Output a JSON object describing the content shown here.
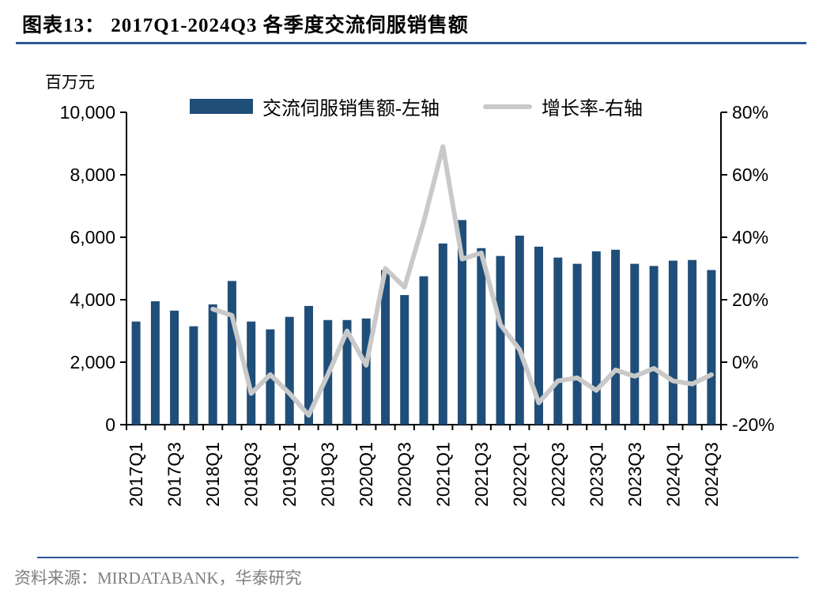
{
  "header": {
    "title": "图表13： 2017Q1-2024Q3 各季度交流伺服销售额"
  },
  "chart_data": {
    "type": "bar",
    "combo": "bar+line",
    "title": "2017Q1-2024Q3 各季度交流伺服销售额",
    "unit_label": "百万元",
    "grid": false,
    "legend_position": "top",
    "x_tick_every": 2,
    "categories": [
      "2017Q1",
      "2017Q2",
      "2017Q3",
      "2017Q4",
      "2018Q1",
      "2018Q2",
      "2018Q3",
      "2018Q4",
      "2019Q1",
      "2019Q2",
      "2019Q3",
      "2019Q4",
      "2020Q1",
      "2020Q2",
      "2020Q3",
      "2020Q4",
      "2021Q1",
      "2021Q2",
      "2021Q3",
      "2021Q4",
      "2022Q1",
      "2022Q2",
      "2022Q3",
      "2022Q4",
      "2023Q1",
      "2023Q2",
      "2023Q3",
      "2023Q4",
      "2024Q1",
      "2024Q2",
      "2024Q3"
    ],
    "left_axis": {
      "label": "百万元",
      "range": [
        0,
        10000
      ],
      "ticks": [
        0,
        2000,
        4000,
        6000,
        8000,
        10000
      ]
    },
    "right_axis": {
      "format": "percent",
      "range": [
        -20,
        80
      ],
      "ticks": [
        -20,
        0,
        20,
        40,
        60,
        80
      ]
    },
    "series": [
      {
        "name": "交流伺服销售额-左轴",
        "type": "bar",
        "axis": "left",
        "color": "#1F4E79",
        "values": [
          3300,
          3950,
          3650,
          3150,
          3850,
          4600,
          3300,
          3050,
          3450,
          3800,
          3350,
          3350,
          3400,
          4950,
          4150,
          4750,
          5800,
          6550,
          5650,
          5400,
          6050,
          5700,
          5350,
          5150,
          5550,
          5600,
          5150,
          5080,
          5250,
          5270,
          4950
        ]
      },
      {
        "name": "增长率-右轴",
        "type": "line",
        "axis": "right",
        "color": "#C9C9C9",
        "values": [
          null,
          null,
          null,
          null,
          17,
          15,
          -10,
          -4,
          -10,
          -17,
          -4,
          10,
          -1,
          30,
          24,
          45,
          69,
          33,
          35,
          12,
          4,
          -13,
          -6,
          -5,
          -9,
          -2.5,
          -4.5,
          -2,
          -6,
          -7,
          -4
        ]
      }
    ]
  },
  "footer": {
    "source": "资料来源：MIRDATABANK，华泰研究"
  },
  "colors": {
    "bar": "#1F4E79",
    "line": "#C9C9C9",
    "rule": "#2F5597",
    "footer_text": "#7F7F7F"
  }
}
